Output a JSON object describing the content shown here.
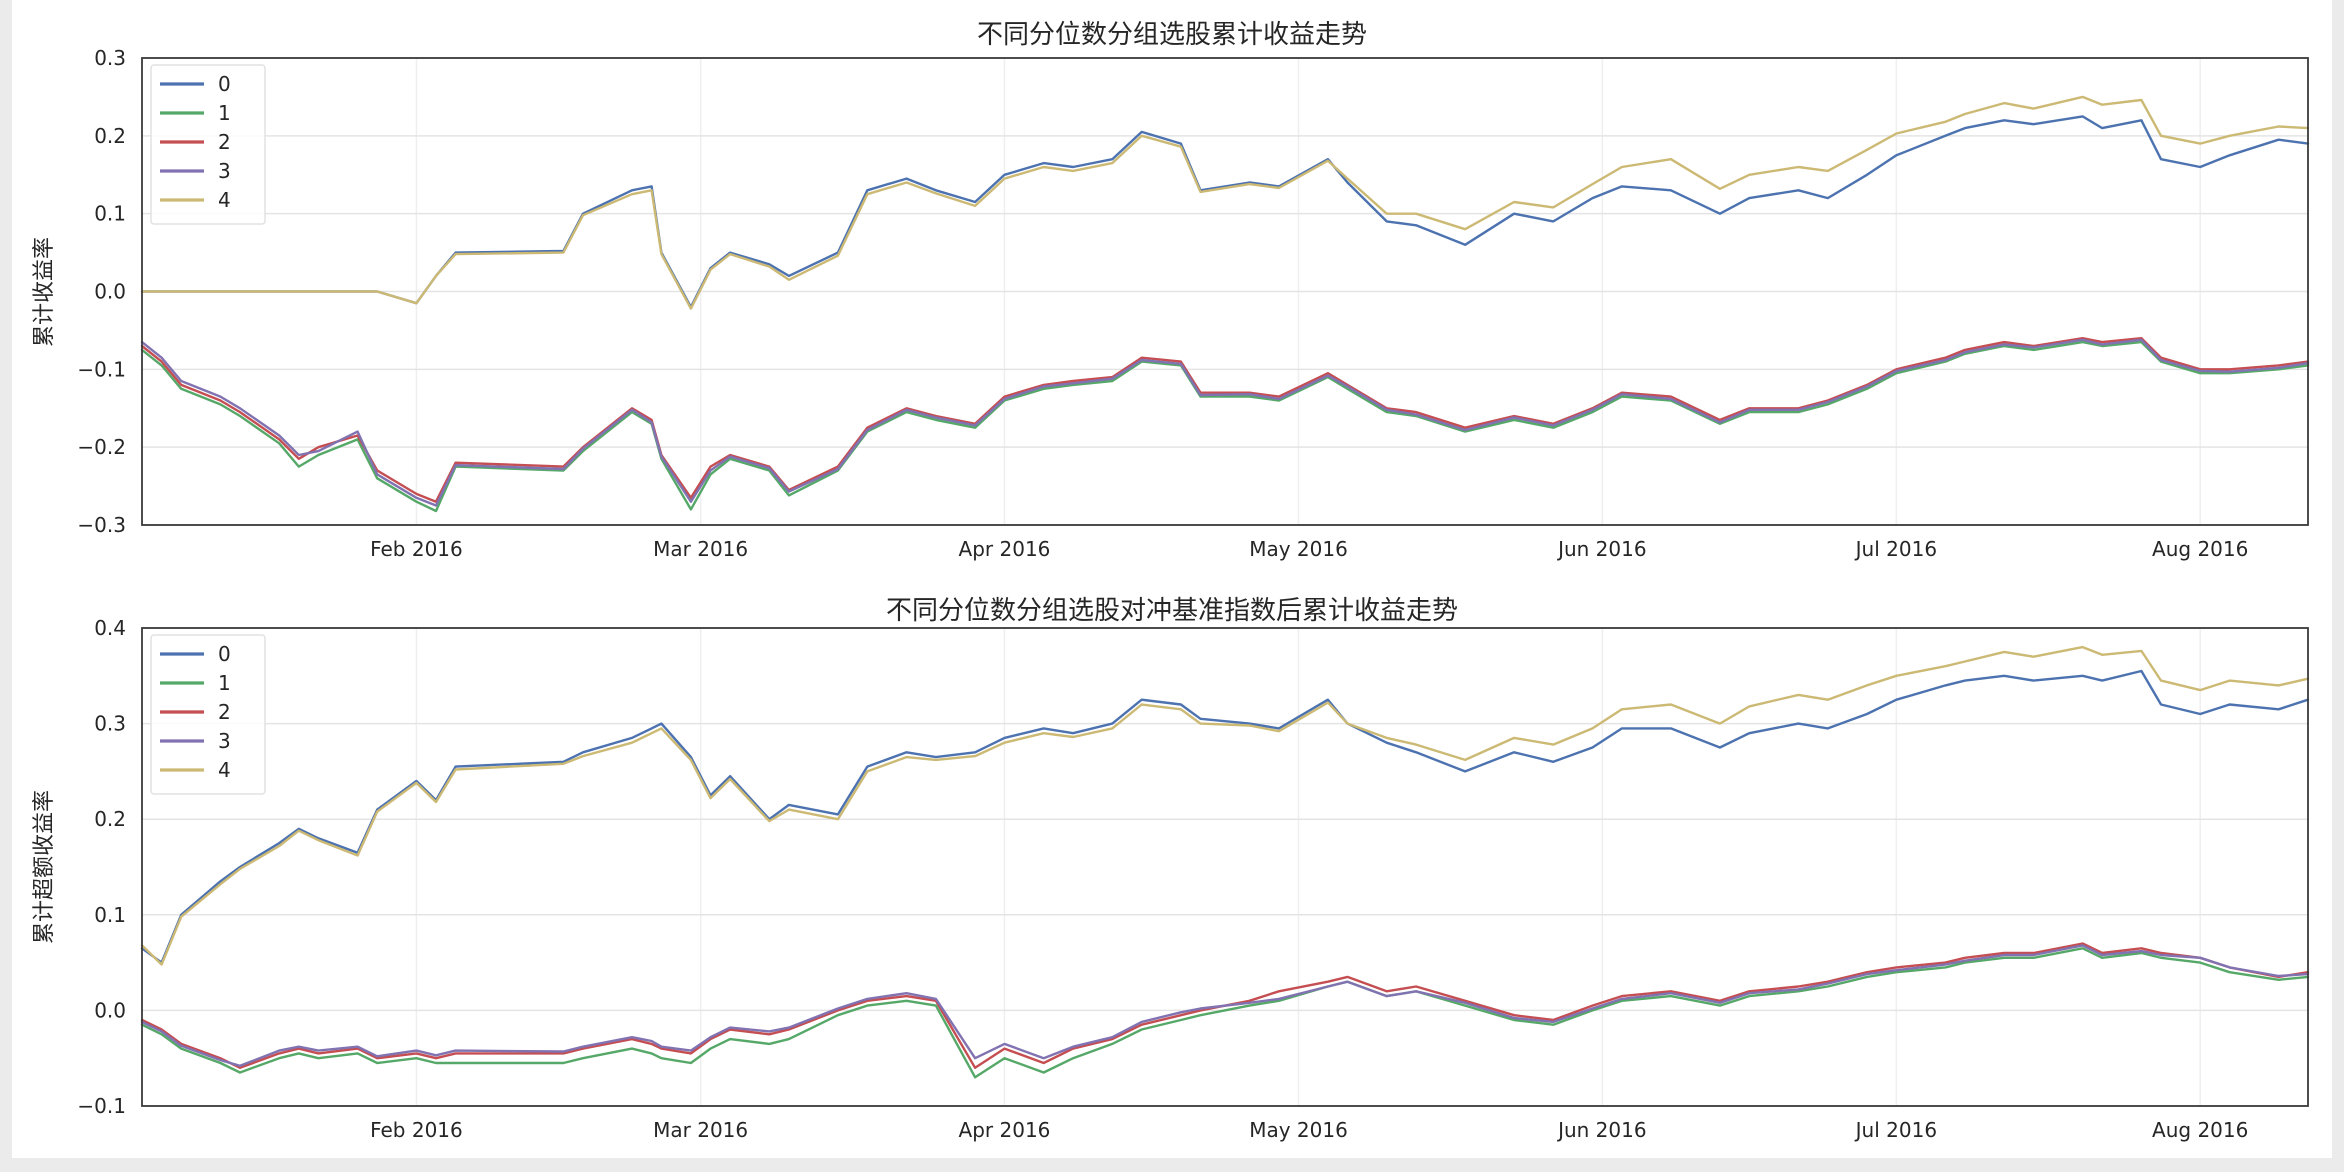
{
  "page": {
    "canvas_bg": "#ebebeb",
    "figure_bg": "#ffffff"
  },
  "chart_data": [
    {
      "type": "line",
      "title": "不同分位数分组选股累计收益走势",
      "ylabel": "累计收益率",
      "ylim": [
        -0.3,
        0.3
      ],
      "grid": true,
      "legend_position": "upper-left",
      "yticks": [
        {
          "label": "0.3",
          "value": 0.3
        },
        {
          "label": "0.2",
          "value": 0.2
        },
        {
          "label": "0.1",
          "value": 0.1
        },
        {
          "label": "0.0",
          "value": 0.0
        },
        {
          "label": "−0.1",
          "value": -0.1
        },
        {
          "label": "−0.2",
          "value": -0.2
        },
        {
          "label": "−0.3",
          "value": -0.3
        }
      ],
      "xticks": [
        {
          "label": "Feb 2016",
          "date": "2016-02-01"
        },
        {
          "label": "Mar 2016",
          "date": "2016-03-01"
        },
        {
          "label": "Apr 2016",
          "date": "2016-04-01"
        },
        {
          "label": "May 2016",
          "date": "2016-05-01"
        },
        {
          "label": "Jun 2016",
          "date": "2016-06-01"
        },
        {
          "label": "Jul 2016",
          "date": "2016-07-01"
        },
        {
          "label": "Aug 2016",
          "date": "2016-08-01"
        }
      ],
      "x_range": [
        "2016-01-04",
        "2016-08-12"
      ],
      "x_dates": [
        "2016-01-04",
        "2016-01-06",
        "2016-01-08",
        "2016-01-12",
        "2016-01-14",
        "2016-01-18",
        "2016-01-20",
        "2016-01-22",
        "2016-01-26",
        "2016-01-28",
        "2016-02-01",
        "2016-02-03",
        "2016-02-05",
        "2016-02-16",
        "2016-02-18",
        "2016-02-23",
        "2016-02-25",
        "2016-02-26",
        "2016-02-29",
        "2016-03-02",
        "2016-03-04",
        "2016-03-08",
        "2016-03-10",
        "2016-03-15",
        "2016-03-18",
        "2016-03-22",
        "2016-03-25",
        "2016-03-29",
        "2016-04-01",
        "2016-04-05",
        "2016-04-08",
        "2016-04-12",
        "2016-04-15",
        "2016-04-19",
        "2016-04-21",
        "2016-04-26",
        "2016-04-29",
        "2016-05-04",
        "2016-05-06",
        "2016-05-10",
        "2016-05-13",
        "2016-05-18",
        "2016-05-23",
        "2016-05-27",
        "2016-05-31",
        "2016-06-03",
        "2016-06-08",
        "2016-06-13",
        "2016-06-16",
        "2016-06-21",
        "2016-06-24",
        "2016-06-28",
        "2016-07-01",
        "2016-07-06",
        "2016-07-08",
        "2016-07-12",
        "2016-07-15",
        "2016-07-20",
        "2016-07-22",
        "2016-07-26",
        "2016-07-28",
        "2016-08-01",
        "2016-08-04",
        "2016-08-09",
        "2016-08-12"
      ],
      "series": [
        {
          "name": "0",
          "color": "#4C72B0",
          "values": [
            0,
            0,
            0,
            0,
            0,
            0,
            0,
            0,
            0,
            0,
            -0.015,
            0.02,
            0.05,
            0.052,
            0.1,
            0.13,
            0.135,
            0.05,
            -0.02,
            0.03,
            0.05,
            0.035,
            0.02,
            0.05,
            0.13,
            0.145,
            0.13,
            0.115,
            0.15,
            0.165,
            0.16,
            0.17,
            0.205,
            0.19,
            0.13,
            0.14,
            0.135,
            0.17,
            0.14,
            0.09,
            0.085,
            0.06,
            0.1,
            0.09,
            0.12,
            0.135,
            0.13,
            0.1,
            0.12,
            0.13,
            0.12,
            0.15,
            0.175,
            0.2,
            0.21,
            0.22,
            0.215,
            0.225,
            0.21,
            0.22,
            0.17,
            0.16,
            0.175,
            0.195,
            0.19
          ]
        },
        {
          "name": "1",
          "color": "#55A868",
          "values": [
            -0.075,
            -0.095,
            -0.125,
            -0.145,
            -0.16,
            -0.195,
            -0.225,
            -0.21,
            -0.19,
            -0.24,
            -0.27,
            -0.282,
            -0.225,
            -0.23,
            -0.205,
            -0.155,
            -0.17,
            -0.215,
            -0.28,
            -0.235,
            -0.215,
            -0.23,
            -0.262,
            -0.23,
            -0.18,
            -0.155,
            -0.165,
            -0.175,
            -0.14,
            -0.125,
            -0.12,
            -0.115,
            -0.09,
            -0.095,
            -0.135,
            -0.135,
            -0.14,
            -0.11,
            -0.125,
            -0.155,
            -0.16,
            -0.18,
            -0.165,
            -0.175,
            -0.155,
            -0.135,
            -0.14,
            -0.17,
            -0.155,
            -0.155,
            -0.145,
            -0.125,
            -0.105,
            -0.09,
            -0.08,
            -0.07,
            -0.075,
            -0.065,
            -0.07,
            -0.065,
            -0.09,
            -0.105,
            -0.105,
            -0.1,
            -0.095
          ]
        },
        {
          "name": "2",
          "color": "#C44E52",
          "values": [
            -0.07,
            -0.09,
            -0.12,
            -0.14,
            -0.155,
            -0.19,
            -0.215,
            -0.2,
            -0.185,
            -0.23,
            -0.26,
            -0.27,
            -0.22,
            -0.225,
            -0.2,
            -0.15,
            -0.165,
            -0.21,
            -0.265,
            -0.225,
            -0.21,
            -0.225,
            -0.255,
            -0.225,
            -0.175,
            -0.15,
            -0.16,
            -0.17,
            -0.135,
            -0.12,
            -0.115,
            -0.11,
            -0.085,
            -0.09,
            -0.13,
            -0.13,
            -0.135,
            -0.105,
            -0.12,
            -0.15,
            -0.155,
            -0.175,
            -0.16,
            -0.17,
            -0.15,
            -0.13,
            -0.135,
            -0.165,
            -0.15,
            -0.15,
            -0.14,
            -0.12,
            -0.1,
            -0.085,
            -0.075,
            -0.065,
            -0.07,
            -0.06,
            -0.065,
            -0.06,
            -0.085,
            -0.1,
            -0.1,
            -0.095,
            -0.09
          ]
        },
        {
          "name": "3",
          "color": "#8172B2",
          "values": [
            -0.065,
            -0.085,
            -0.115,
            -0.135,
            -0.15,
            -0.185,
            -0.21,
            -0.205,
            -0.18,
            -0.235,
            -0.265,
            -0.275,
            -0.223,
            -0.228,
            -0.202,
            -0.152,
            -0.168,
            -0.212,
            -0.27,
            -0.23,
            -0.212,
            -0.227,
            -0.257,
            -0.228,
            -0.178,
            -0.152,
            -0.162,
            -0.172,
            -0.138,
            -0.122,
            -0.118,
            -0.112,
            -0.088,
            -0.093,
            -0.133,
            -0.132,
            -0.138,
            -0.108,
            -0.122,
            -0.152,
            -0.158,
            -0.178,
            -0.162,
            -0.172,
            -0.152,
            -0.132,
            -0.138,
            -0.168,
            -0.152,
            -0.152,
            -0.142,
            -0.122,
            -0.102,
            -0.088,
            -0.078,
            -0.068,
            -0.072,
            -0.062,
            -0.068,
            -0.062,
            -0.088,
            -0.102,
            -0.103,
            -0.098,
            -0.092
          ]
        },
        {
          "name": "4",
          "color": "#CCB974",
          "values": [
            0,
            0,
            0,
            0,
            0,
            0,
            0,
            0,
            0,
            0,
            -0.015,
            0.02,
            0.048,
            0.05,
            0.098,
            0.125,
            0.13,
            0.048,
            -0.022,
            0.028,
            0.048,
            0.032,
            0.015,
            0.046,
            0.125,
            0.14,
            0.126,
            0.11,
            0.145,
            0.16,
            0.155,
            0.165,
            0.2,
            0.186,
            0.128,
            0.138,
            0.133,
            0.168,
            0.145,
            0.1,
            0.1,
            0.08,
            0.115,
            0.108,
            0.138,
            0.16,
            0.17,
            0.132,
            0.15,
            0.16,
            0.155,
            0.182,
            0.203,
            0.218,
            0.228,
            0.242,
            0.235,
            0.25,
            0.24,
            0.246,
            0.2,
            0.19,
            0.2,
            0.212,
            0.21
          ]
        }
      ]
    },
    {
      "type": "line",
      "title": "不同分位数分组选股对冲基准指数后累计收益走势",
      "ylabel": "累计超额收益率",
      "ylim": [
        -0.1,
        0.4
      ],
      "grid": true,
      "legend_position": "upper-left",
      "yticks": [
        {
          "label": "0.4",
          "value": 0.4
        },
        {
          "label": "0.3",
          "value": 0.3
        },
        {
          "label": "0.2",
          "value": 0.2
        },
        {
          "label": "0.1",
          "value": 0.1
        },
        {
          "label": "0.0",
          "value": 0.0
        },
        {
          "label": "−0.1",
          "value": -0.1
        }
      ],
      "xticks": [
        {
          "label": "Feb 2016",
          "date": "2016-02-01"
        },
        {
          "label": "Mar 2016",
          "date": "2016-03-01"
        },
        {
          "label": "Apr 2016",
          "date": "2016-04-01"
        },
        {
          "label": "May 2016",
          "date": "2016-05-01"
        },
        {
          "label": "Jun 2016",
          "date": "2016-06-01"
        },
        {
          "label": "Jul 2016",
          "date": "2016-07-01"
        },
        {
          "label": "Aug 2016",
          "date": "2016-08-01"
        }
      ],
      "x_range": [
        "2016-01-04",
        "2016-08-12"
      ],
      "x_dates": [
        "2016-01-04",
        "2016-01-06",
        "2016-01-08",
        "2016-01-12",
        "2016-01-14",
        "2016-01-18",
        "2016-01-20",
        "2016-01-22",
        "2016-01-26",
        "2016-01-28",
        "2016-02-01",
        "2016-02-03",
        "2016-02-05",
        "2016-02-16",
        "2016-02-18",
        "2016-02-23",
        "2016-02-25",
        "2016-02-26",
        "2016-02-29",
        "2016-03-02",
        "2016-03-04",
        "2016-03-08",
        "2016-03-10",
        "2016-03-15",
        "2016-03-18",
        "2016-03-22",
        "2016-03-25",
        "2016-03-29",
        "2016-04-01",
        "2016-04-05",
        "2016-04-08",
        "2016-04-12",
        "2016-04-15",
        "2016-04-19",
        "2016-04-21",
        "2016-04-26",
        "2016-04-29",
        "2016-05-04",
        "2016-05-06",
        "2016-05-10",
        "2016-05-13",
        "2016-05-18",
        "2016-05-23",
        "2016-05-27",
        "2016-05-31",
        "2016-06-03",
        "2016-06-08",
        "2016-06-13",
        "2016-06-16",
        "2016-06-21",
        "2016-06-24",
        "2016-06-28",
        "2016-07-01",
        "2016-07-06",
        "2016-07-08",
        "2016-07-12",
        "2016-07-15",
        "2016-07-20",
        "2016-07-22",
        "2016-07-26",
        "2016-07-28",
        "2016-08-01",
        "2016-08-04",
        "2016-08-09",
        "2016-08-12"
      ],
      "series": [
        {
          "name": "0",
          "color": "#4C72B0",
          "values": [
            0.065,
            0.05,
            0.1,
            0.135,
            0.15,
            0.175,
            0.19,
            0.18,
            0.165,
            0.21,
            0.24,
            0.22,
            0.255,
            0.26,
            0.27,
            0.285,
            0.295,
            0.3,
            0.265,
            0.225,
            0.245,
            0.2,
            0.215,
            0.205,
            0.255,
            0.27,
            0.265,
            0.27,
            0.285,
            0.295,
            0.29,
            0.3,
            0.325,
            0.32,
            0.305,
            0.3,
            0.295,
            0.325,
            0.3,
            0.28,
            0.27,
            0.25,
            0.27,
            0.26,
            0.275,
            0.295,
            0.295,
            0.275,
            0.29,
            0.3,
            0.295,
            0.31,
            0.325,
            0.34,
            0.345,
            0.35,
            0.345,
            0.35,
            0.345,
            0.355,
            0.32,
            0.31,
            0.32,
            0.315,
            0.325
          ]
        },
        {
          "name": "1",
          "color": "#55A868",
          "values": [
            -0.015,
            -0.025,
            -0.04,
            -0.055,
            -0.065,
            -0.05,
            -0.045,
            -0.05,
            -0.045,
            -0.055,
            -0.05,
            -0.055,
            -0.055,
            -0.055,
            -0.05,
            -0.04,
            -0.045,
            -0.05,
            -0.055,
            -0.04,
            -0.03,
            -0.035,
            -0.03,
            -0.005,
            0.005,
            0.01,
            0.005,
            -0.07,
            -0.05,
            -0.065,
            -0.05,
            -0.035,
            -0.02,
            -0.01,
            -0.005,
            0.005,
            0.01,
            0.025,
            0.03,
            0.015,
            0.02,
            0.005,
            -0.01,
            -0.015,
            0.0,
            0.01,
            0.015,
            0.005,
            0.015,
            0.02,
            0.025,
            0.035,
            0.04,
            0.045,
            0.05,
            0.055,
            0.055,
            0.065,
            0.055,
            0.06,
            0.055,
            0.05,
            0.04,
            0.032,
            0.035
          ]
        },
        {
          "name": "2",
          "color": "#C44E52",
          "values": [
            -0.01,
            -0.02,
            -0.035,
            -0.05,
            -0.06,
            -0.045,
            -0.04,
            -0.045,
            -0.04,
            -0.05,
            -0.045,
            -0.05,
            -0.045,
            -0.045,
            -0.04,
            -0.03,
            -0.035,
            -0.04,
            -0.045,
            -0.03,
            -0.02,
            -0.025,
            -0.02,
            0.0,
            0.01,
            0.015,
            0.01,
            -0.06,
            -0.04,
            -0.055,
            -0.04,
            -0.03,
            -0.015,
            -0.005,
            0.0,
            0.01,
            0.02,
            0.03,
            0.035,
            0.02,
            0.025,
            0.01,
            -0.005,
            -0.01,
            0.005,
            0.015,
            0.02,
            0.01,
            0.02,
            0.025,
            0.03,
            0.04,
            0.045,
            0.05,
            0.055,
            0.06,
            0.06,
            0.07,
            0.06,
            0.065,
            0.06,
            0.055,
            0.045,
            0.035,
            0.04
          ]
        },
        {
          "name": "3",
          "color": "#8172B2",
          "values": [
            -0.012,
            -0.022,
            -0.037,
            -0.052,
            -0.058,
            -0.042,
            -0.038,
            -0.042,
            -0.038,
            -0.048,
            -0.042,
            -0.047,
            -0.042,
            -0.043,
            -0.038,
            -0.028,
            -0.032,
            -0.038,
            -0.042,
            -0.028,
            -0.018,
            -0.022,
            -0.018,
            0.002,
            0.012,
            0.018,
            0.012,
            -0.05,
            -0.035,
            -0.05,
            -0.038,
            -0.028,
            -0.012,
            -0.002,
            0.002,
            0.008,
            0.012,
            0.025,
            0.03,
            0.015,
            0.02,
            0.008,
            -0.008,
            -0.012,
            0.002,
            0.012,
            0.018,
            0.008,
            0.018,
            0.022,
            0.028,
            0.038,
            0.042,
            0.048,
            0.052,
            0.058,
            0.058,
            0.068,
            0.058,
            0.062,
            0.058,
            0.055,
            0.045,
            0.036,
            0.038
          ]
        },
        {
          "name": "4",
          "color": "#CCB974",
          "values": [
            0.068,
            0.048,
            0.098,
            0.132,
            0.148,
            0.172,
            0.188,
            0.178,
            0.162,
            0.208,
            0.238,
            0.218,
            0.252,
            0.258,
            0.266,
            0.28,
            0.29,
            0.295,
            0.262,
            0.222,
            0.242,
            0.198,
            0.21,
            0.2,
            0.25,
            0.265,
            0.262,
            0.266,
            0.28,
            0.29,
            0.286,
            0.295,
            0.32,
            0.315,
            0.3,
            0.298,
            0.292,
            0.322,
            0.3,
            0.285,
            0.278,
            0.262,
            0.285,
            0.278,
            0.295,
            0.315,
            0.32,
            0.3,
            0.318,
            0.33,
            0.325,
            0.34,
            0.35,
            0.36,
            0.365,
            0.375,
            0.37,
            0.38,
            0.372,
            0.376,
            0.345,
            0.335,
            0.345,
            0.34,
            0.347
          ]
        }
      ]
    }
  ]
}
